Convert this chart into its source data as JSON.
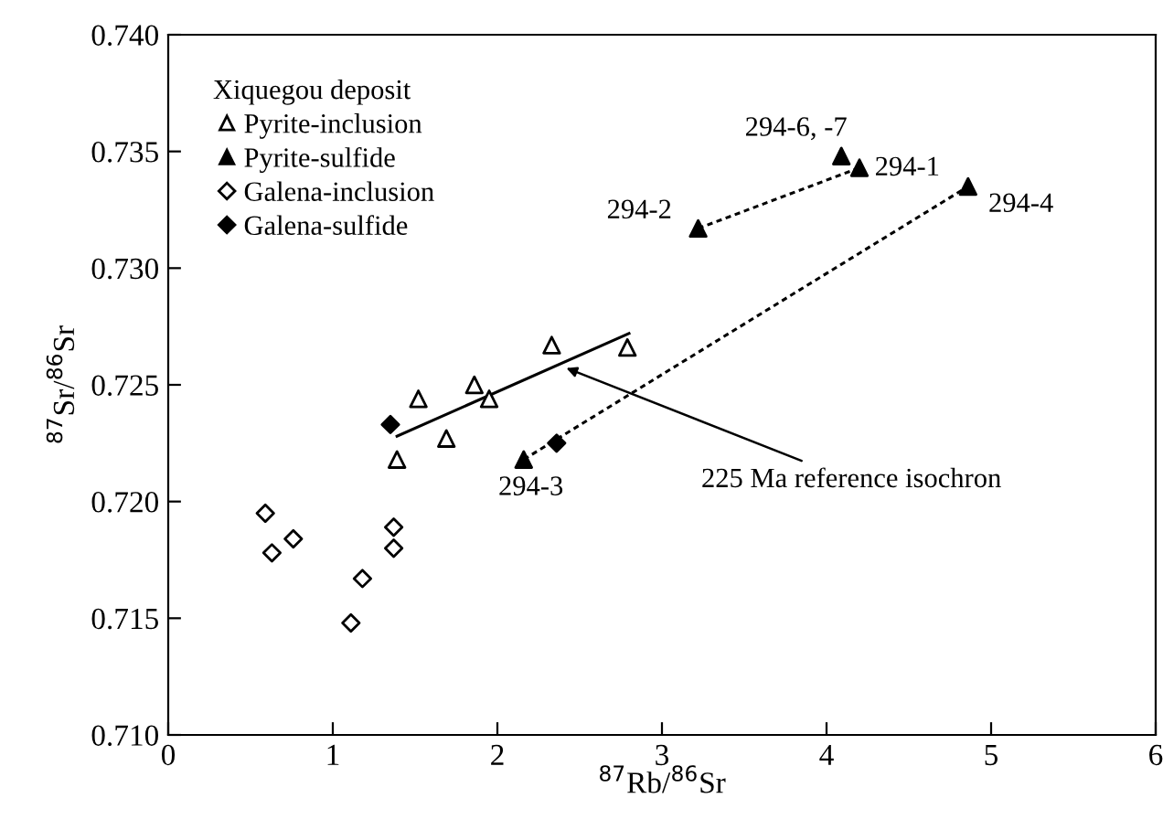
{
  "chart_data": {
    "type": "scatter",
    "xlabel": "$^{87}$Rb/$^{86}$Sr",
    "ylabel": "$^{87}$Sr/$^{86}$Sr",
    "legend_title": "Xiquegou deposit",
    "legend": "top left",
    "grid": false,
    "xlim": [
      0,
      6
    ],
    "ylim": [
      0.71,
      0.74
    ],
    "xticks": [
      0,
      1,
      2,
      3,
      4,
      5,
      6
    ],
    "yticks": [
      {
        "value": 0.71,
        "label": "0.710"
      },
      {
        "value": 0.715,
        "label": "0.715"
      },
      {
        "value": 0.72,
        "label": "0.720"
      },
      {
        "value": 0.725,
        "label": "0.725"
      },
      {
        "value": 0.73,
        "label": "0.730"
      },
      {
        "value": 0.735,
        "label": "0.735"
      },
      {
        "value": 0.74,
        "label": "0.740"
      }
    ],
    "series": [
      {
        "name": "Pyrite-inclusion",
        "marker": "triangle",
        "color": "#000000",
        "x": [
          1.52,
          1.39,
          1.69,
          1.86,
          1.95,
          2.33,
          2.79
        ],
        "values": [
          0.7244,
          0.7218,
          0.7227,
          0.725,
          0.7244,
          0.7267,
          0.7266
        ]
      },
      {
        "name": "Pyrite-sulfide",
        "marker": "triangle",
        "color": "#000000",
        "x": [
          4.09,
          4.2,
          3.22,
          4.86,
          2.16
        ],
        "values": [
          0.7348,
          0.7343,
          0.7317,
          0.7335,
          0.7218
        ]
      },
      {
        "name": "Galena-inclusion",
        "marker": "diamond",
        "color": "#000000",
        "x": [
          0.59,
          0.63,
          0.76,
          1.11,
          1.18,
          1.37,
          1.37
        ],
        "values": [
          0.7195,
          0.7178,
          0.7184,
          0.7148,
          0.7167,
          0.7189,
          0.718
        ]
      },
      {
        "name": "Galena-sulfide",
        "marker": "diamond",
        "color": "#000000",
        "x": [
          1.35,
          2.36
        ],
        "values": [
          0.7233,
          0.7225
        ]
      },
      {
        "type": "line",
        "line_style": "solid",
        "marker": "none",
        "color": "#000000",
        "x": [
          1.39,
          2.8
        ],
        "values": [
          0.7228,
          0.7272
        ]
      },
      {
        "type": "line",
        "line_style": "dashed",
        "marker": "none",
        "color": "#000000",
        "x": [
          3.22,
          4.2
        ],
        "values": [
          0.7317,
          0.7343
        ]
      },
      {
        "type": "line",
        "line_style": "dashed",
        "marker": "none",
        "color": "#000000",
        "x": [
          2.16,
          4.86
        ],
        "values": [
          0.7218,
          0.7335
        ]
      }
    ],
    "annotations": [
      {
        "text": "294-6, -7",
        "x": 4.09,
        "y": 0.7348
      },
      {
        "text": "294-1",
        "x": 4.2,
        "y": 0.7343
      },
      {
        "text": "294-2",
        "x": 3.22,
        "y": 0.7317
      },
      {
        "text": "294-4",
        "x": 4.86,
        "y": 0.7335
      },
      {
        "text": "294-3",
        "x": 2.16,
        "y": 0.7218
      },
      {
        "text": "225 Ma reference isochron",
        "x": 2.39,
        "y": 0.7258
      }
    ]
  }
}
